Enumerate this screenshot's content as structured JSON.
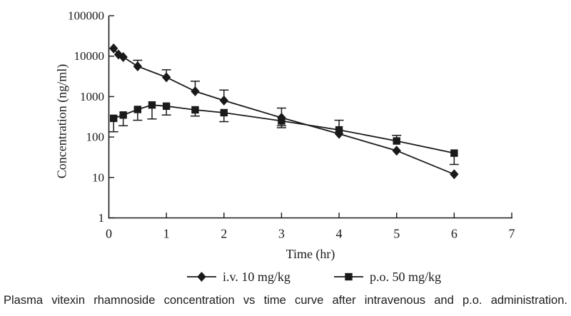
{
  "figure": {
    "caption": "Plasma vitexin rhamnoside concentration vs time curve after intravenous and p.o. administration."
  },
  "chart_data": {
    "type": "line",
    "title": "",
    "xlabel": "Time (hr)",
    "ylabel": "Concentration (ng/ml)",
    "grid": false,
    "legend_position": "bottom-center",
    "axis_color": "#1a1a1a",
    "x_axis": {
      "min": 0,
      "max": 7,
      "ticks": [
        0,
        1,
        2,
        3,
        4,
        5,
        6,
        7
      ]
    },
    "y_axis": {
      "scale": "log",
      "min": 1,
      "max": 100000,
      "ticks": [
        1,
        10,
        100,
        1000,
        10000,
        100000
      ],
      "tick_labels": [
        "1",
        "10",
        "100",
        "1000",
        "10000",
        "100000"
      ]
    },
    "series": [
      {
        "name": "i.v. 10 mg/kg",
        "marker": "diamond",
        "color": "#1a1a1a",
        "x": [
          0.083,
          0.167,
          0.25,
          0.5,
          1,
          1.5,
          2,
          3,
          4,
          5,
          6
        ],
        "y": [
          15500,
          11000,
          9500,
          5600,
          3000,
          1350,
          800,
          300,
          120,
          46,
          12
        ],
        "err_up": [
          null,
          null,
          null,
          7900,
          4600,
          2400,
          1450,
          520,
          null,
          null,
          null
        ],
        "err_down": [
          null,
          null,
          null,
          null,
          null,
          null,
          null,
          190,
          null,
          null,
          null
        ]
      },
      {
        "name": "p.o. 50 mg/kg",
        "marker": "square",
        "color": "#1a1a1a",
        "x": [
          0.083,
          0.25,
          0.5,
          0.75,
          1,
          1.5,
          2,
          3,
          4,
          5,
          6
        ],
        "y": [
          290,
          350,
          480,
          620,
          580,
          470,
          400,
          250,
          150,
          80,
          40
        ],
        "err_up": [
          null,
          null,
          null,
          null,
          null,
          null,
          null,
          null,
          260,
          110,
          null
        ],
        "err_down": [
          135,
          190,
          260,
          280,
          350,
          330,
          240,
          170,
          null,
          null,
          21
        ]
      }
    ]
  }
}
